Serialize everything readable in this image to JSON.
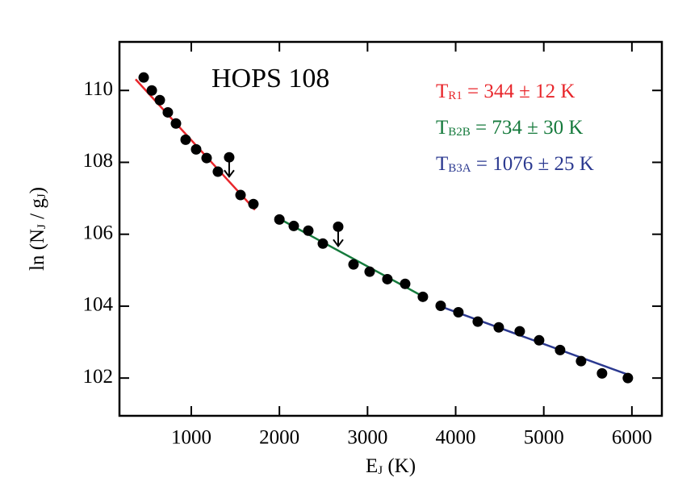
{
  "chart_data": {
    "type": "scatter",
    "title": "HOPS 108",
    "xlabel": [
      "E",
      "J",
      " (K)"
    ],
    "ylabel": [
      "ln (N",
      "J",
      " / g",
      "J",
      ")"
    ],
    "xlim": [
      185,
      6340
    ],
    "ylim": [
      100.95,
      111.35
    ],
    "xticks": [
      1000,
      2000,
      3000,
      4000,
      5000,
      6000
    ],
    "yticks": [
      102,
      104,
      106,
      108,
      110
    ],
    "points": {
      "color": "#000000",
      "x": [
        460,
        552,
        643,
        734,
        826,
        936,
        1055,
        1174,
        1302,
        1559,
        1705,
        2000,
        2163,
        2328,
        2493,
        2841,
        3024,
        3225,
        3427,
        3628,
        3830,
        4031,
        4251,
        4489,
        4727,
        4947,
        5185,
        5423,
        5661,
        5954
      ],
      "y": [
        110.36,
        110.0,
        109.73,
        109.39,
        109.08,
        108.63,
        108.36,
        108.12,
        107.74,
        107.09,
        106.84,
        106.41,
        106.23,
        106.1,
        105.74,
        105.16,
        104.96,
        104.75,
        104.62,
        104.26,
        104.01,
        103.83,
        103.57,
        103.41,
        103.3,
        103.05,
        102.78,
        102.47,
        102.13,
        102.0
      ]
    },
    "upper_limits": {
      "color": "#000000",
      "x": [
        1430,
        2667
      ],
      "y": [
        108.14,
        106.21
      ]
    },
    "fits": [
      {
        "label": [
          "T",
          "R1",
          " = 344 ± 12 K"
        ],
        "color": "#e8262b",
        "x": [
          368,
          1723
        ],
        "y": [
          110.31,
          106.68
        ]
      },
      {
        "label": [
          "T",
          "B2B",
          " = 734 ± 30 K"
        ],
        "color": "#157a3c",
        "x": [
          2000,
          3637
        ],
        "y": [
          106.43,
          104.26
        ]
      },
      {
        "label": [
          "T",
          "B3A",
          " = 1076 ± 25 K"
        ],
        "color": "#2b3990",
        "x": [
          3775,
          5973
        ],
        "y": [
          104.04,
          102.08
        ]
      }
    ]
  }
}
